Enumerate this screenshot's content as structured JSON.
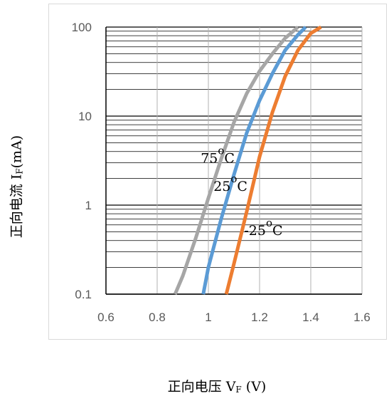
{
  "chart_data": {
    "type": "line",
    "title": "",
    "xlim": [
      0.6,
      1.6
    ],
    "ylim": [
      0.1,
      100
    ],
    "y_scale": "log",
    "grid": true,
    "x_ticks": [
      "0.6",
      "0.8",
      "1",
      "1.2",
      "1.4",
      "1.6"
    ],
    "y_ticks": [
      "0.1",
      "1",
      "10",
      "100"
    ],
    "y_tick_values": [
      0.1,
      1,
      10,
      100
    ],
    "xlabel": {
      "main": "正向电压 V",
      "sub": "F",
      "suffix": " (V)"
    },
    "ylabel": {
      "main": "正向电流 I",
      "sub": "F",
      "suffix": "(mA)"
    },
    "series": [
      {
        "name": "75°C",
        "color": "#a6a6a6",
        "points": [
          [
            0.87,
            0.1
          ],
          [
            0.9,
            0.16
          ],
          [
            0.95,
            0.42
          ],
          [
            1.0,
            1.2
          ],
          [
            1.05,
            3.3
          ],
          [
            1.1,
            8.5
          ],
          [
            1.15,
            18
          ],
          [
            1.2,
            32
          ],
          [
            1.25,
            50
          ],
          [
            1.3,
            75
          ],
          [
            1.35,
            100
          ]
        ]
      },
      {
        "name": "25°C",
        "color": "#5b9bd5",
        "points": [
          [
            0.98,
            0.1
          ],
          [
            1.0,
            0.2
          ],
          [
            1.05,
            0.7
          ],
          [
            1.1,
            2.2
          ],
          [
            1.15,
            6.5
          ],
          [
            1.2,
            15
          ],
          [
            1.25,
            30
          ],
          [
            1.3,
            55
          ],
          [
            1.35,
            82
          ],
          [
            1.38,
            100
          ]
        ]
      },
      {
        "name": "-25°C",
        "color": "#ed7d31",
        "points": [
          [
            1.07,
            0.1
          ],
          [
            1.1,
            0.22
          ],
          [
            1.15,
            0.85
          ],
          [
            1.2,
            3.5
          ],
          [
            1.25,
            11
          ],
          [
            1.3,
            28
          ],
          [
            1.35,
            55
          ],
          [
            1.4,
            85
          ],
          [
            1.44,
            100
          ]
        ]
      }
    ],
    "annotations": [
      {
        "text": "75",
        "sup": "o",
        "unit": "C",
        "x": 0.97,
        "y": 3.0,
        "series": "75°C"
      },
      {
        "text": "25",
        "sup": "o",
        "unit": "C",
        "x": 1.02,
        "y": 1.45,
        "series": "25°C"
      },
      {
        "text": "-25",
        "sup": "o",
        "unit": "C",
        "x": 1.14,
        "y": 0.46,
        "series": "-25°C"
      }
    ]
  }
}
